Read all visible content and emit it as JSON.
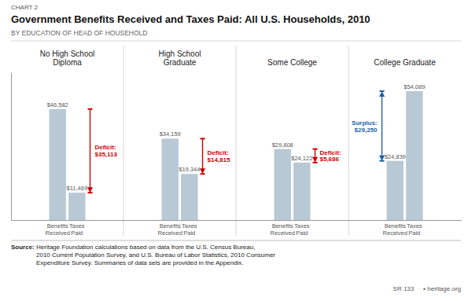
{
  "chart_data": {
    "type": "bar",
    "chart_label": "CHART 2",
    "title": "Government Benefits Received and Taxes Paid: All U.S. Households, 2010",
    "subtitle": "BY EDUCATION OF HEAD OF HOUSEHOLD",
    "categories": [
      "No High School\nDiploma",
      "High School\nGraduate",
      "Some College",
      "College Graduate"
    ],
    "series": [
      {
        "name": "Benefits\nReceived",
        "color": "#b8c8d4",
        "values": [
          46582,
          34159,
          29808,
          24839
        ],
        "value_labels": [
          "$46,582",
          "$34,159",
          "$29,808",
          "$24,839"
        ]
      },
      {
        "name": "Taxes\nPaid",
        "color": "#b8c8d4",
        "values": [
          11469,
          19344,
          24122,
          54089
        ],
        "value_labels": [
          "$11,469",
          "$19,344",
          "$24,122",
          "$54,089"
        ]
      }
    ],
    "ylim": [
      0,
      62000
    ],
    "tick_labels": "x",
    "data_labels": true,
    "annotations": [
      {
        "text": "Deficit:\n$35,113",
        "value": 35113,
        "kind": "deficit",
        "color": "#cc0000"
      },
      {
        "text": "Deficit:\n$14,815",
        "value": 14815,
        "kind": "deficit",
        "color": "#cc0000"
      },
      {
        "text": "Deficit:\n$5,686",
        "value": 5686,
        "kind": "deficit",
        "color": "#cc0000"
      },
      {
        "text": "Surplus:\n$29,250",
        "value": 29250,
        "kind": "surplus",
        "color": "#1a5fa8"
      }
    ],
    "source_label": "Source:",
    "source": "Heritage Foundation calculations based on data from the U.S. Census Bureau,\n2010 Current Population Survey, and U.S. Bureau of Labor Statistics, 2010 Consumer\nExpenditure Survey. Summaries of data sets are provided in the Appendix.",
    "footer": [
      "SR 133",
      "▪ heritage.org"
    ]
  }
}
